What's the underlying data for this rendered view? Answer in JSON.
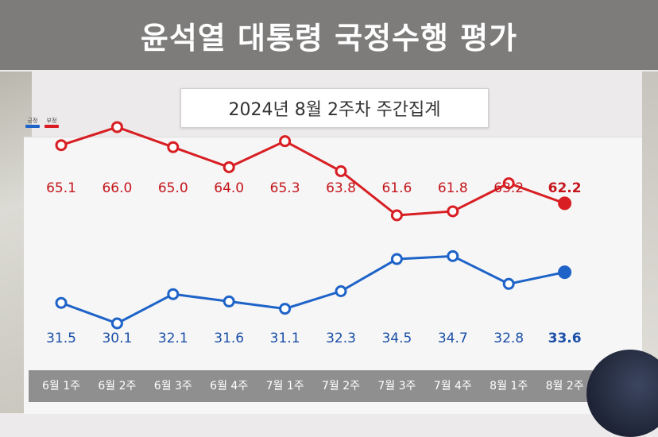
{
  "header": {
    "title": "윤석열 대통령 국정수행 평가"
  },
  "subtitle": "2024년 8월 2주차 주간집계",
  "colors": {
    "positive": "#1e63c8",
    "negative": "#d81e22",
    "title_bar": "#7d7c7b",
    "axis_bar": "#8f8f8f"
  },
  "chart_data": {
    "type": "line",
    "title": "윤석열 대통령 국정수행 평가",
    "subtitle": "2024년 8월 2주차 주간집계",
    "categories": [
      "6월 1주",
      "6월 2주",
      "6월 3주",
      "6월 4주",
      "7월 1주",
      "7월 2주",
      "7월 3주",
      "7월 4주",
      "8월 1주",
      "8월 2주"
    ],
    "series": [
      {
        "name": "부정",
        "color": "#d81e22",
        "values": [
          65.1,
          66.0,
          65.0,
          64.0,
          65.3,
          63.8,
          61.6,
          61.8,
          63.2,
          62.2
        ],
        "labels": [
          "65.1",
          "66.0",
          "65.0",
          "64.0",
          "65.3",
          "63.8",
          "61.6",
          "61.8",
          "63.2",
          "62.2"
        ]
      },
      {
        "name": "긍정",
        "color": "#1e63c8",
        "values": [
          31.5,
          30.1,
          32.1,
          31.6,
          31.1,
          32.3,
          34.5,
          34.7,
          32.8,
          33.6
        ],
        "labels": [
          "31.5",
          "30.1",
          "32.1",
          "31.6",
          "31.1",
          "32.3",
          "34.5",
          "34.7",
          "32.8",
          "33.6"
        ]
      }
    ],
    "legend": [
      {
        "name": "긍정",
        "color": "#1e63c8"
      },
      {
        "name": "부정",
        "color": "#d81e22"
      }
    ],
    "legend_position": "top-left",
    "grid": false
  }
}
